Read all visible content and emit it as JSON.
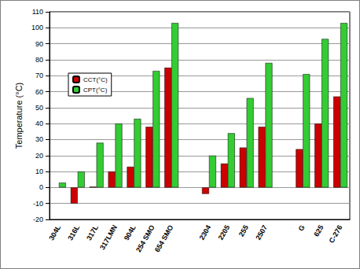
{
  "chart_data": {
    "type": "bar",
    "y_label": "Temperature (°C)",
    "categories": [
      "304L",
      "316L",
      "317L",
      "317LMN",
      "904L",
      "254 SMO",
      "654 SMO",
      null,
      "2304",
      "2205",
      "255",
      "2507",
      null,
      "G",
      "625",
      "C-276"
    ],
    "series": [
      {
        "name": "CCT(°C)",
        "color": "#cc0000",
        "values": [
          null,
          -10,
          0.5,
          10,
          13,
          38,
          75,
          null,
          -4,
          15,
          25,
          38,
          null,
          24,
          40,
          57
        ]
      },
      {
        "name": "CPT(°C)",
        "color": "#33cc33",
        "values": [
          3,
          10,
          28,
          40,
          43,
          73,
          103,
          null,
          20,
          34,
          56,
          78,
          null,
          71,
          93,
          103
        ]
      }
    ],
    "ylim": [
      -20,
      110
    ],
    "yticks": [
      -20,
      -10,
      0,
      10,
      20,
      30,
      40,
      50,
      60,
      70,
      80,
      90,
      100,
      110
    ],
    "grid": true,
    "legend": "upper left"
  }
}
